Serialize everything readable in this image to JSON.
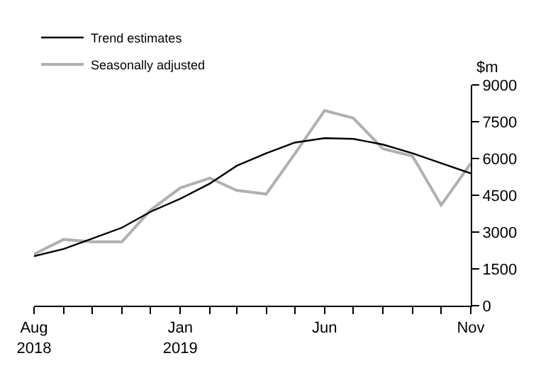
{
  "chart_data": {
    "type": "line",
    "ylabel": "$m",
    "x": [
      "2018-08",
      "2018-09",
      "2018-10",
      "2018-11",
      "2018-12",
      "2019-01",
      "2019-02",
      "2019-03",
      "2019-04",
      "2019-05",
      "2019-06",
      "2019-07",
      "2019-08",
      "2019-09",
      "2019-10",
      "2019-11"
    ],
    "series": [
      {
        "name": "Trend estimates",
        "color": "#000000",
        "values": [
          2020,
          2310,
          2740,
          3180,
          3830,
          4360,
          4980,
          5700,
          6210,
          6650,
          6830,
          6800,
          6570,
          6210,
          5810,
          5390
        ]
      },
      {
        "name": "Seasonally adjusted",
        "color": "#b0b0b0",
        "values": [
          2100,
          2700,
          2600,
          2600,
          3900,
          4800,
          5200,
          4700,
          4550,
          6200,
          7950,
          7650,
          6400,
          6100,
          4100,
          5800
        ]
      }
    ],
    "xlim": [
      "2018-08",
      "2019-11"
    ],
    "xticks": [
      {
        "value": "2018-08",
        "label": "Aug\n2018"
      },
      {
        "value": "2018-09",
        "label": null
      },
      {
        "value": "2018-10",
        "label": null
      },
      {
        "value": "2018-11",
        "label": null
      },
      {
        "value": "2018-12",
        "label": null
      },
      {
        "value": "2019-01",
        "label": "Jan\n2019"
      },
      {
        "value": "2019-02",
        "label": null
      },
      {
        "value": "2019-03",
        "label": null
      },
      {
        "value": "2019-04",
        "label": null
      },
      {
        "value": "2019-05",
        "label": null
      },
      {
        "value": "2019-06",
        "label": "Jun"
      },
      {
        "value": "2019-07",
        "label": null
      },
      {
        "value": "2019-08",
        "label": null
      },
      {
        "value": "2019-09",
        "label": null
      },
      {
        "value": "2019-10",
        "label": null
      },
      {
        "value": "2019-11",
        "label": "Nov"
      }
    ],
    "ylim": [
      0,
      9000
    ],
    "yticks": [
      0,
      1500,
      3000,
      4500,
      6000,
      7500,
      9000
    ],
    "legend": "top left",
    "marker": "none",
    "line_style": "solid"
  }
}
